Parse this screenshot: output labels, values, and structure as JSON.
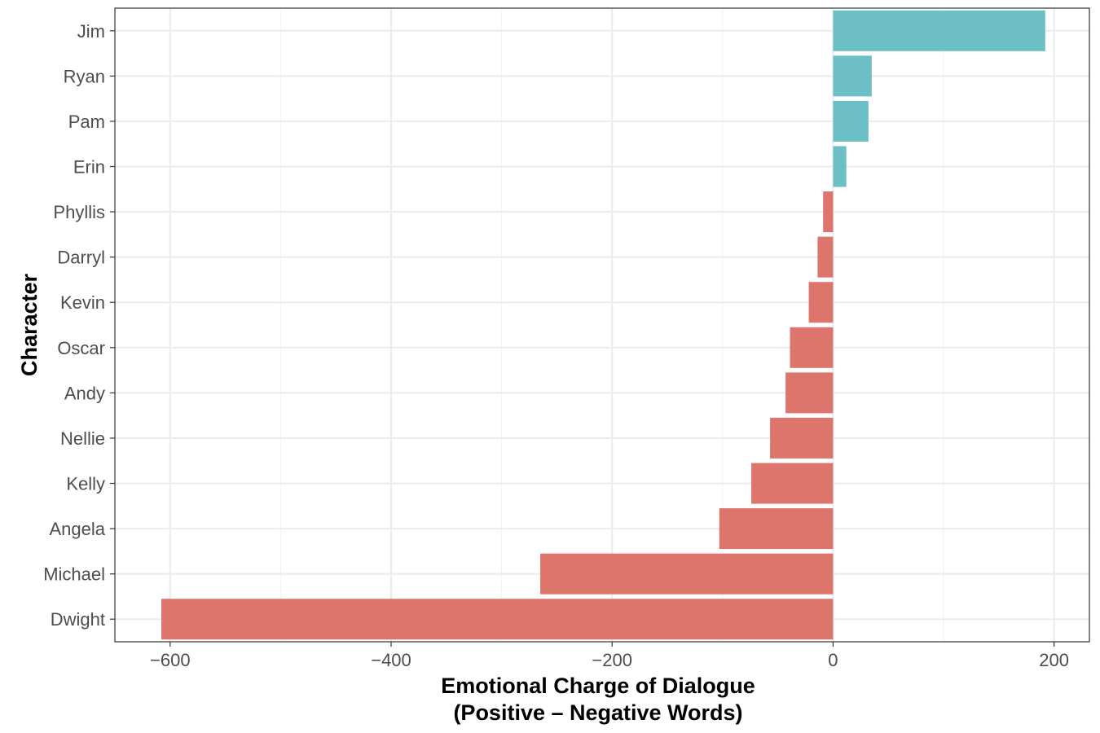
{
  "chart_data": {
    "type": "bar",
    "orientation": "horizontal",
    "categories": [
      "Jim",
      "Ryan",
      "Pam",
      "Erin",
      "Phyllis",
      "Darryl",
      "Kevin",
      "Oscar",
      "Andy",
      "Nellie",
      "Kelly",
      "Angela",
      "Michael",
      "Dwight"
    ],
    "values": [
      192,
      35,
      32,
      12,
      -9,
      -14,
      -22,
      -39,
      -43,
      -57,
      -74,
      -103,
      -265,
      -608
    ],
    "xlabel": "Emotional Charge of Dialogue",
    "xlabel_line2": "(Positive – Negative Words)",
    "ylabel": "Character",
    "xlim": [
      -608,
      232
    ],
    "xticks": [
      -600,
      -400,
      -200,
      0,
      200
    ],
    "xtick_labels": [
      "−600",
      "−400",
      "−200",
      "0",
      "200"
    ],
    "grid": true,
    "colors": {
      "positive": "#6cbfc4",
      "negative": "#dd756d"
    }
  }
}
